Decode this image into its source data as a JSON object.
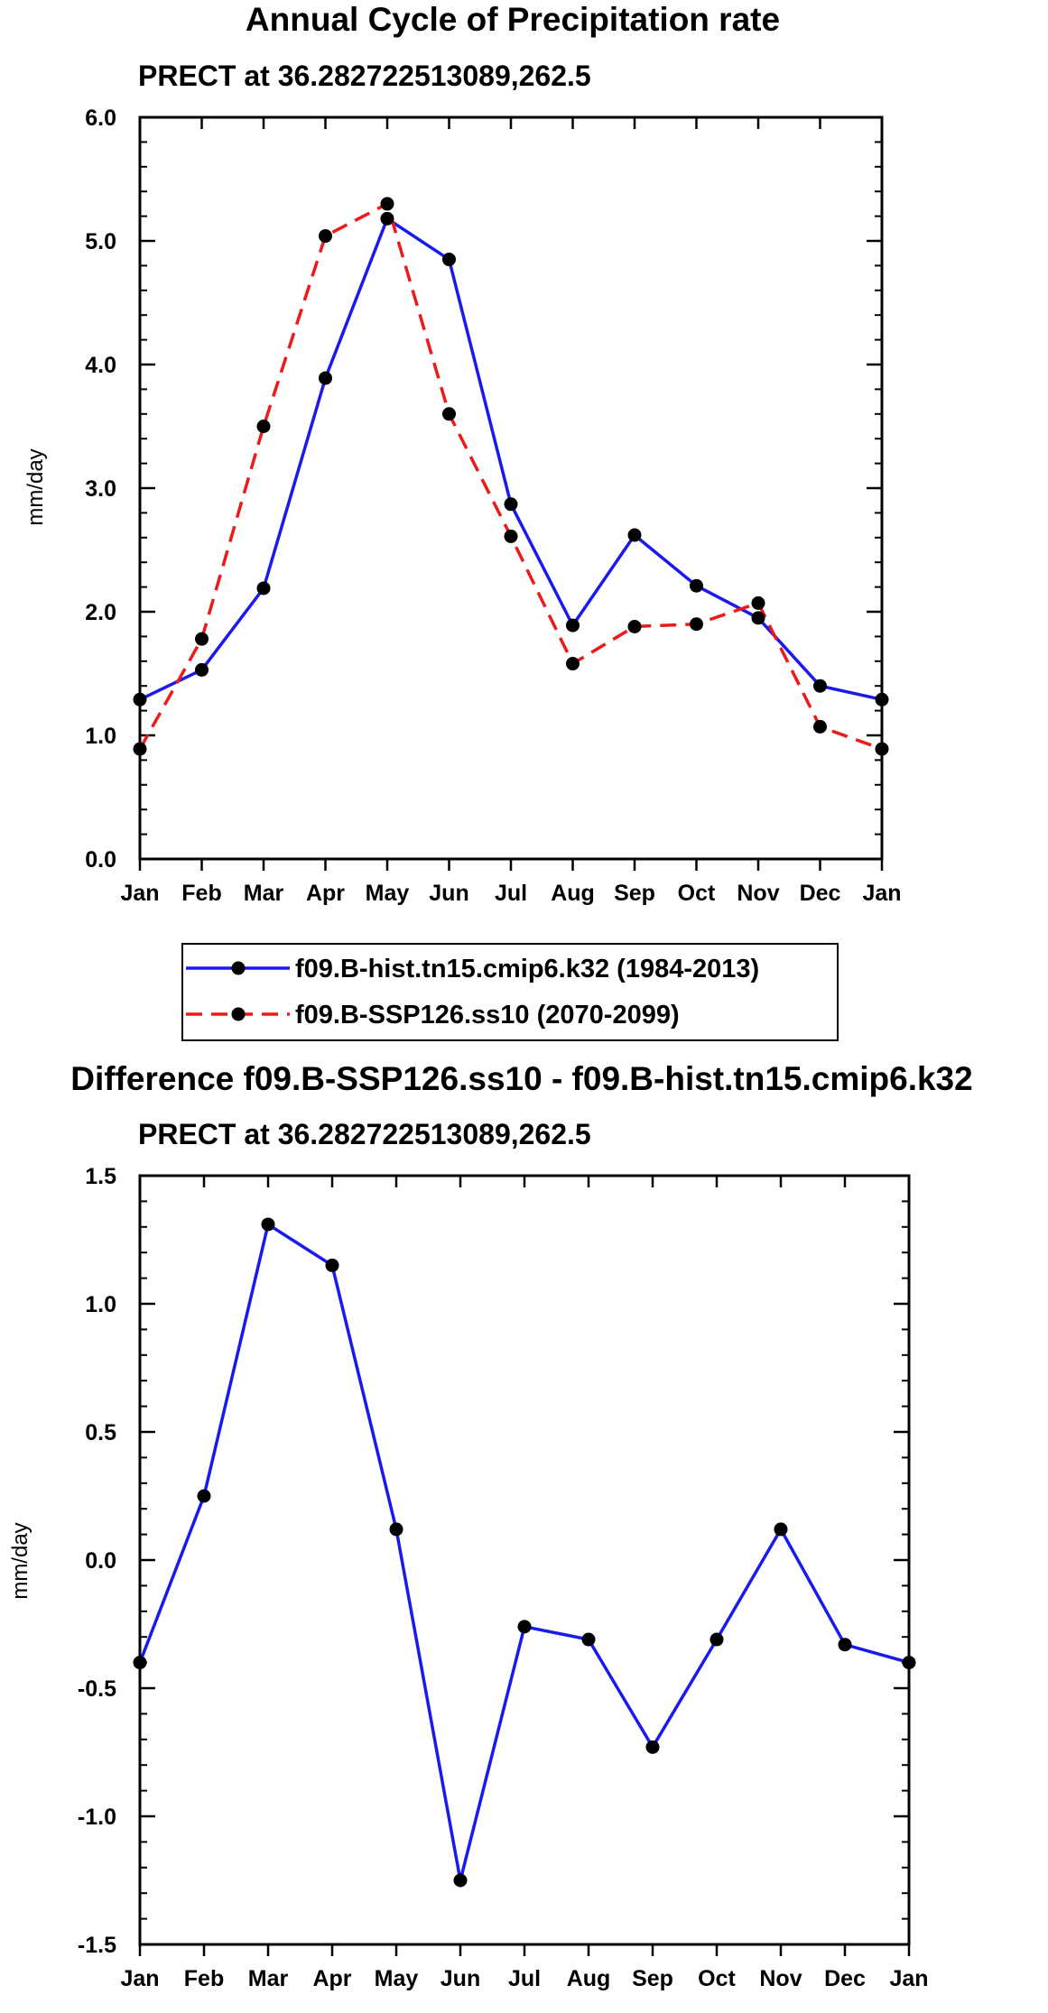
{
  "colors": {
    "hist": "#1a1aee",
    "ssp": "#ee1a1a",
    "diff": "#1a1aee",
    "marker": "#000000",
    "axis": "#000000"
  },
  "chart_data": [
    {
      "type": "line",
      "title": "Annual Cycle of Precipitation rate",
      "subtitle": "PRECT at 36.282722513089,262.5",
      "ylabel": "mm/day",
      "xlabel": "",
      "categories": [
        "Jan",
        "Feb",
        "Mar",
        "Apr",
        "May",
        "Jun",
        "Jul",
        "Aug",
        "Sep",
        "Oct",
        "Nov",
        "Dec",
        "Jan"
      ],
      "ylim": [
        0,
        6
      ],
      "yticks": [
        0,
        1,
        2,
        3,
        4,
        5,
        6
      ],
      "ytick_labels": [
        "0.0",
        "1.0",
        "2.0",
        "3.0",
        "4.0",
        "5.0",
        "6.0"
      ],
      "legend_position": "below",
      "series": [
        {
          "name": "f09.B-hist.tn15.cmip6.k32 (1984-2013)",
          "style": "solid",
          "color_key": "hist",
          "values": [
            1.29,
            1.53,
            2.19,
            3.89,
            5.18,
            4.85,
            2.87,
            1.89,
            2.62,
            2.21,
            1.95,
            1.4,
            1.29
          ]
        },
        {
          "name": "f09.B-SSP126.ss10 (2070-2099)",
          "style": "dashed",
          "color_key": "ssp",
          "values": [
            0.89,
            1.78,
            3.5,
            5.04,
            5.3,
            3.6,
            2.61,
            1.58,
            1.88,
            1.9,
            2.07,
            1.07,
            0.89
          ]
        }
      ]
    },
    {
      "type": "line",
      "title": "Difference f09.B-SSP126.ss10 - f09.B-hist.tn15.cmip6.k32",
      "subtitle": "PRECT at 36.282722513089,262.5",
      "ylabel": "mm/day",
      "xlabel": "",
      "categories": [
        "Jan",
        "Feb",
        "Mar",
        "Apr",
        "May",
        "Jun",
        "Jul",
        "Aug",
        "Sep",
        "Oct",
        "Nov",
        "Dec",
        "Jan"
      ],
      "ylim": [
        -1.5,
        1.5
      ],
      "yticks": [
        -1.5,
        -1.0,
        -0.5,
        0,
        0.5,
        1.0,
        1.5
      ],
      "ytick_labels": [
        "-1.5",
        "-1.0",
        "-0.5",
        "0.0",
        "0.5",
        "1.0",
        "1.5"
      ],
      "series": [
        {
          "name": "difference",
          "style": "solid",
          "color_key": "diff",
          "values": [
            -0.4,
            0.25,
            1.31,
            1.15,
            0.12,
            -1.25,
            -0.26,
            -0.31,
            -0.73,
            -0.31,
            0.12,
            -0.33,
            -0.4
          ]
        }
      ]
    }
  ]
}
